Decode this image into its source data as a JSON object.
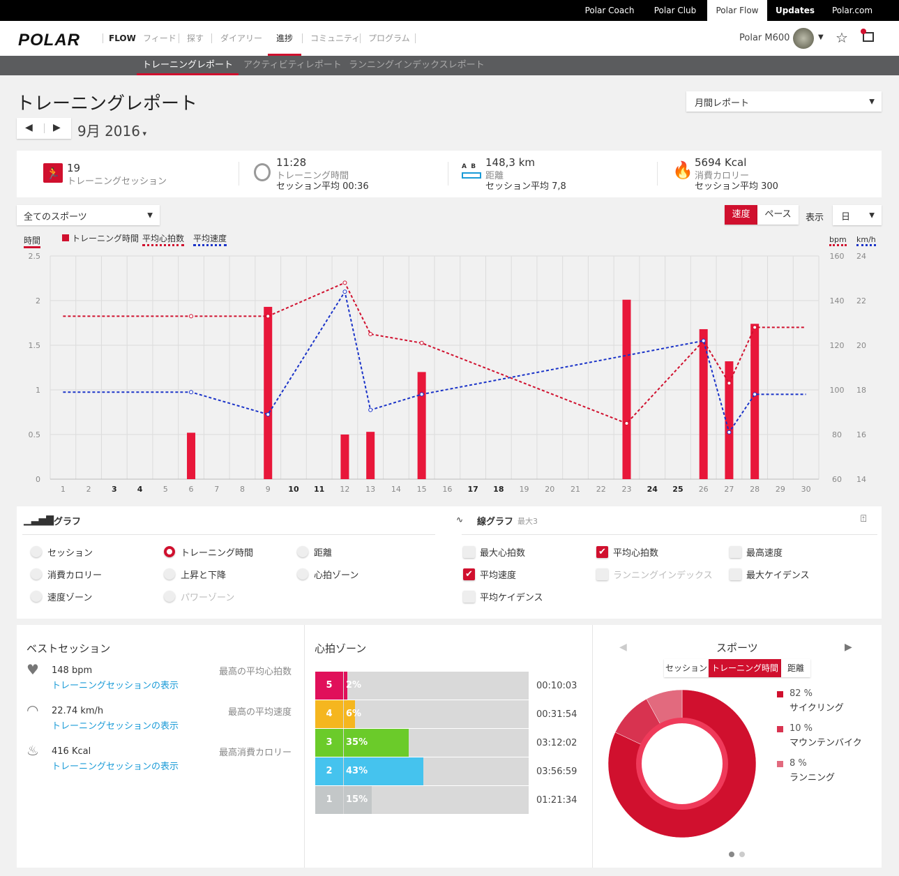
{
  "topbar": {
    "links": [
      "Polar Coach",
      "Polar Club",
      "Polar Flow",
      "Updates",
      "Polar.com"
    ]
  },
  "nav": {
    "logo": "POLAR",
    "flow": "FLOW",
    "items": [
      "フィード",
      "探す",
      "ダイアリー",
      "進捗",
      "コミュニティ",
      "プログラム"
    ],
    "device": "Polar M600"
  },
  "subnav": [
    "トレーニングレポート",
    "アクティビティレポート",
    "ランニングインデックスレポート"
  ],
  "page": {
    "title": "トレーニングレポート",
    "period": "9月 2016",
    "report_type": "月間レポート"
  },
  "summary": [
    {
      "value": "19",
      "label": "トレーニングセッション",
      "avg": ""
    },
    {
      "value": "11:28",
      "label": "トレーニング時間",
      "avg": "セッション平均 00:36"
    },
    {
      "value": "148,3 km",
      "label": "距離",
      "avg": "セッション平均 7,8"
    },
    {
      "value": "5694 Kcal",
      "label": "消費カロリー",
      "avg": "セッション平均 300"
    }
  ],
  "filters": {
    "sport": "全てのスポーツ",
    "speed": "速度",
    "pace": "ペース",
    "display_label": "表示",
    "display": "日"
  },
  "colors": {
    "accent": "#d0102e",
    "hr_line": "#d0102e",
    "speed_line": "#1a33c8"
  },
  "chart_data": {
    "type": "bar+line",
    "legend": {
      "left_axis": "時間",
      "bar": "トレーニング時間",
      "hr": "平均心拍数",
      "speed": "平均速度",
      "right_axis1": "bpm",
      "right_axis2": "km/h"
    },
    "x": [
      1,
      2,
      3,
      4,
      5,
      6,
      7,
      8,
      9,
      10,
      11,
      12,
      13,
      14,
      15,
      16,
      17,
      18,
      19,
      20,
      21,
      22,
      23,
      24,
      25,
      26,
      27,
      28,
      29,
      30
    ],
    "weekend": [
      3,
      4,
      10,
      11,
      17,
      18,
      24,
      25
    ],
    "ylim": [
      0,
      2.5
    ],
    "yticks": [
      "0",
      "0.5",
      "1",
      "1.5",
      "2",
      "2.5"
    ],
    "bpm_lim": [
      60,
      160
    ],
    "bpm_ticks": [
      "60",
      "80",
      "100",
      "120",
      "140",
      "160"
    ],
    "kmh_lim": [
      14,
      24
    ],
    "kmh_ticks": [
      "14",
      "16",
      "18",
      "20",
      "22",
      "24"
    ],
    "bars": [
      [
        6,
        0.52
      ],
      [
        9,
        1.93
      ],
      [
        12,
        0.5
      ],
      [
        13,
        0.53
      ],
      [
        15,
        1.2
      ],
      [
        23,
        2.01
      ],
      [
        26,
        1.68
      ],
      [
        27,
        1.32
      ],
      [
        28,
        1.74
      ]
    ],
    "hr": [
      [
        1,
        133
      ],
      [
        6,
        133
      ],
      [
        9,
        133
      ],
      [
        12,
        148
      ],
      [
        13,
        125
      ],
      [
        15,
        121
      ],
      [
        23,
        85
      ],
      [
        26,
        122
      ],
      [
        27,
        103
      ],
      [
        28,
        128
      ],
      [
        30,
        128
      ]
    ],
    "speed": [
      [
        1,
        17.9
      ],
      [
        6,
        17.9
      ],
      [
        9,
        16.9
      ],
      [
        12,
        22.4
      ],
      [
        13,
        17.1
      ],
      [
        15,
        17.8
      ],
      [
        26,
        20.2
      ],
      [
        27,
        16.1
      ],
      [
        28,
        17.8
      ],
      [
        30,
        17.8
      ]
    ]
  },
  "bar_graph": {
    "title": "棒グラフ",
    "options": [
      {
        "label": "セッション",
        "on": false,
        "dis": false
      },
      {
        "label": "トレーニング時間",
        "on": true,
        "dis": false
      },
      {
        "label": "距離",
        "on": false,
        "dis": false
      },
      {
        "label": "消費カロリー",
        "on": false,
        "dis": false
      },
      {
        "label": "上昇と下降",
        "on": false,
        "dis": false
      },
      {
        "label": "心拍ゾーン",
        "on": false,
        "dis": false
      },
      {
        "label": "速度ゾーン",
        "on": false,
        "dis": false
      },
      {
        "label": "パワーゾーン",
        "on": false,
        "dis": true
      }
    ]
  },
  "line_graph": {
    "title": "線グラフ",
    "max": "最大3",
    "options": [
      {
        "label": "最大心拍数",
        "on": false,
        "dis": false
      },
      {
        "label": "平均心拍数",
        "on": true,
        "dis": false
      },
      {
        "label": "最高速度",
        "on": false,
        "dis": false
      },
      {
        "label": "平均速度",
        "on": true,
        "dis": false
      },
      {
        "label": "ランニングインデックス",
        "on": false,
        "dis": true
      },
      {
        "label": "最大ケイデンス",
        "on": false,
        "dis": false
      },
      {
        "label": "平均ケイデンス",
        "on": false,
        "dis": false
      }
    ]
  },
  "best": {
    "title": "ベストセッション",
    "items": [
      {
        "value": "148 bpm",
        "link": "トレーニングセッションの表示",
        "label": "最高の平均心拍数"
      },
      {
        "value": "22.74 km/h",
        "link": "トレーニングセッションの表示",
        "label": "最高の平均速度"
      },
      {
        "value": "416 Kcal",
        "link": "トレーニングセッションの表示",
        "label": "最高消費カロリー"
      }
    ]
  },
  "zones": {
    "title": "心拍ゾーン",
    "items": [
      {
        "zone": "5",
        "pct": "2%",
        "value": 2,
        "time": "00:10:03",
        "color": "#e0105a"
      },
      {
        "zone": "4",
        "pct": "6%",
        "value": 6,
        "time": "00:31:54",
        "color": "#f5b61f"
      },
      {
        "zone": "3",
        "pct": "35%",
        "value": 35,
        "time": "03:12:02",
        "color": "#6bcb2a"
      },
      {
        "zone": "2",
        "pct": "43%",
        "value": 43,
        "time": "03:56:59",
        "color": "#45c3ee"
      },
      {
        "zone": "1",
        "pct": "15%",
        "value": 15,
        "time": "01:21:34",
        "color": "#c3c7c8"
      }
    ]
  },
  "sports": {
    "title": "スポーツ",
    "tabs": [
      "セッション",
      "トレーニング時間",
      "距離"
    ],
    "items": [
      {
        "pct": "82 %",
        "value": 82,
        "name": "サイクリング",
        "color": "#d0102e"
      },
      {
        "pct": "10 %",
        "value": 10,
        "name": "マウンテンバイク",
        "color": "#d83350"
      },
      {
        "pct": "8 %",
        "value": 8,
        "name": "ランニング",
        "color": "#e26a7e"
      }
    ]
  }
}
